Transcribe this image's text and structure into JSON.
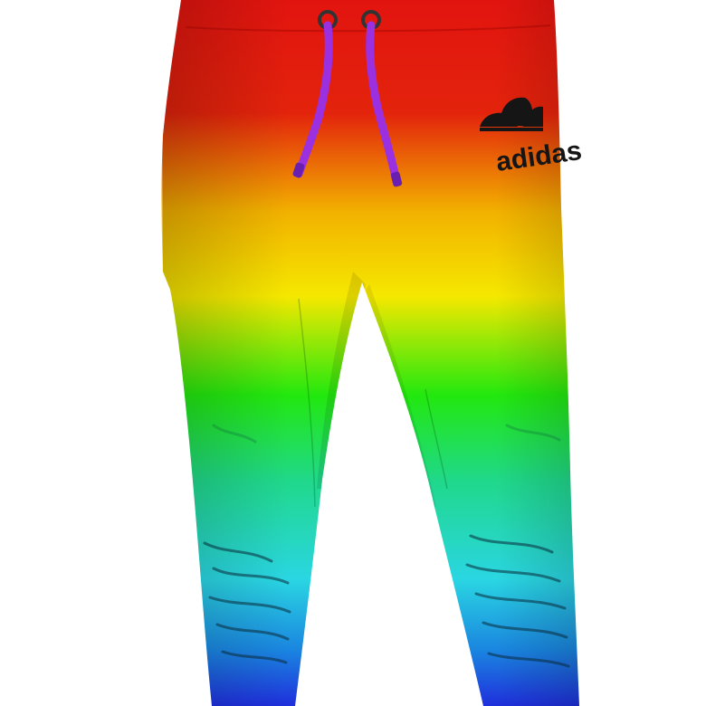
{
  "image": {
    "subject": "rainbow-gradient-jogger-pants",
    "background_color": "#ffffff"
  },
  "gradient": {
    "stops": [
      {
        "offset": 0.0,
        "color": "#e2140f"
      },
      {
        "offset": 0.16,
        "color": "#e3230c"
      },
      {
        "offset": 0.3,
        "color": "#f2b100"
      },
      {
        "offset": 0.42,
        "color": "#f5e800"
      },
      {
        "offset": 0.56,
        "color": "#22e80e"
      },
      {
        "offset": 0.68,
        "color": "#20d88a"
      },
      {
        "offset": 0.82,
        "color": "#2ad6e2"
      },
      {
        "offset": 0.92,
        "color": "#1a86e0"
      },
      {
        "offset": 1.0,
        "color": "#1f2fdc"
      }
    ]
  },
  "drawstrings": {
    "color": "#9b30e0",
    "eyelet_color": "#333333"
  },
  "logo": {
    "brand_text": "adidas",
    "icon_name": "trefoil-logo-icon",
    "color": "#151515"
  }
}
